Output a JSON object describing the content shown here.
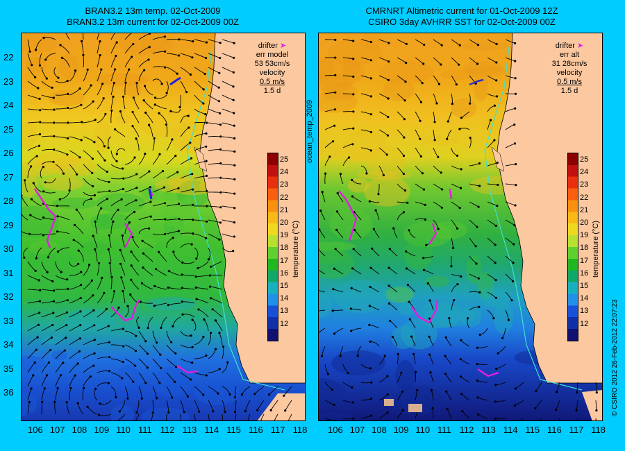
{
  "left_panel": {
    "title_line1": "BRAN3.2 13m temp. 02-Oct-2009",
    "title_line2": "BRAN3.2 13m current for 02-Oct-2009 00Z",
    "legend": {
      "drifter_label": "drifter",
      "err_label": "err model",
      "err_value": "53 53cm/s",
      "velocity_label": "velocity",
      "velocity_scale": "0.5 m/s",
      "velocity_days": "1.5 d"
    }
  },
  "right_panel": {
    "title_line1": "CMRNRT Altimetric current for 01-Oct-2009 12Z",
    "title_line2": "CSIRO 3day AVHRR SST for 02-Oct-2009 00Z",
    "legend": {
      "drifter_label": "drifter",
      "err_label": "err alt",
      "err_value": "31 28cm/s",
      "velocity_label": "velocity",
      "velocity_scale": "0.5 m/s",
      "velocity_days": "1.5 d"
    }
  },
  "middle_label": "ocean_temp_2009",
  "colorbar_label": "temperature (°C)",
  "colorbar_ticks": [
    "25",
    "24",
    "23",
    "22",
    "21",
    "20",
    "19",
    "18",
    "17",
    "16",
    "15",
    "14",
    "13",
    "12"
  ],
  "latitude_ticks": [
    "22",
    "23",
    "24",
    "25",
    "26",
    "27",
    "28",
    "29",
    "30",
    "31",
    "32",
    "33",
    "34",
    "35",
    "36"
  ],
  "longitude_ticks": [
    "106",
    "107",
    "108",
    "109",
    "110",
    "111",
    "112",
    "113",
    "114",
    "115",
    "116",
    "117",
    "118"
  ],
  "credit": "© CSIRO 2012   26-Feb-2012 22:07:23",
  "colors": {
    "background": "#00ccff",
    "land": "#fcc8a0",
    "drifter": "#e020e0",
    "model_drifter": "#2020e0"
  }
}
